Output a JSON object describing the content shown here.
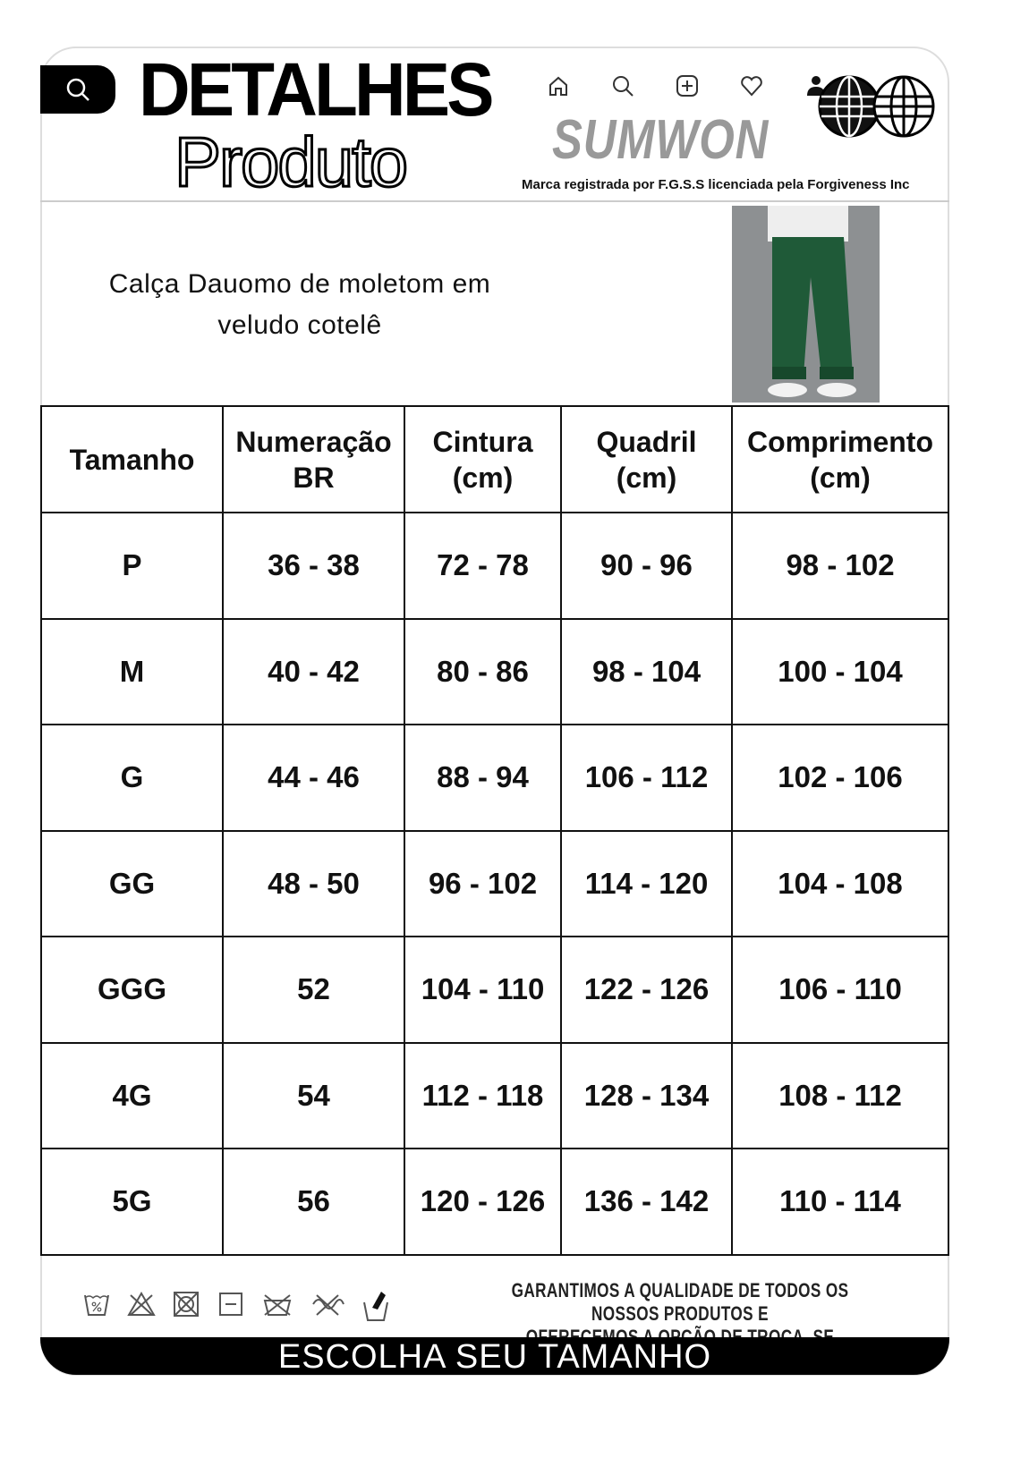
{
  "header": {
    "title_line1": "DETALHES",
    "title_line2": "Produto",
    "brand": "SUMWON",
    "trademark": "Marca registrada por F.G.S.S licenciada pela Forgiveness Inc",
    "nav_icons": [
      "home-icon",
      "search-icon",
      "add-icon",
      "heart-icon",
      "user-icon"
    ]
  },
  "product": {
    "name_line1": "Calça Dauomo de moletom em",
    "name_line2": "veludo cotelê"
  },
  "table": {
    "headers": [
      [
        "Tamanho",
        ""
      ],
      [
        "Numeração",
        "BR"
      ],
      [
        "Cintura",
        "(cm)"
      ],
      [
        "Quadril",
        "(cm)"
      ],
      [
        "Comprimento",
        "(cm)"
      ]
    ],
    "rows": [
      [
        "P",
        "36 - 38",
        "72 - 78",
        "90 - 96",
        "98 - 102"
      ],
      [
        "M",
        "40 - 42",
        "80 - 86",
        "98 - 104",
        "100 - 104"
      ],
      [
        "G",
        "44 - 46",
        "88 - 94",
        "106 - 112",
        "102 - 106"
      ],
      [
        "GG",
        "48 - 50",
        "96 - 102",
        "114 - 120",
        "104 - 108"
      ],
      [
        "GGG",
        "52",
        "104 - 110",
        "122 - 126",
        "106 - 110"
      ],
      [
        "4G",
        "54",
        "112 - 118",
        "128 - 134",
        "108 - 112"
      ],
      [
        "5G",
        "56",
        "120 - 126",
        "136 - 142",
        "110 - 114"
      ]
    ]
  },
  "footer": {
    "guarantee_line1": "GARANTIMOS A QUALIDADE DE TODOS OS NOSSOS PRODUTOS E",
    "guarantee_line2": "OFERECEMOS A OPÇÃO DE TROCA, SE NECESSÁRIO.",
    "cta": "ESCOLHA SEU TAMANHO",
    "care_icons": [
      "wash-30-icon",
      "no-bleach-icon",
      "no-tumble-dry-icon",
      "dry-flat-icon",
      "no-dry-clean-icon",
      "no-wring-icon",
      "hand-wash-icon"
    ]
  }
}
